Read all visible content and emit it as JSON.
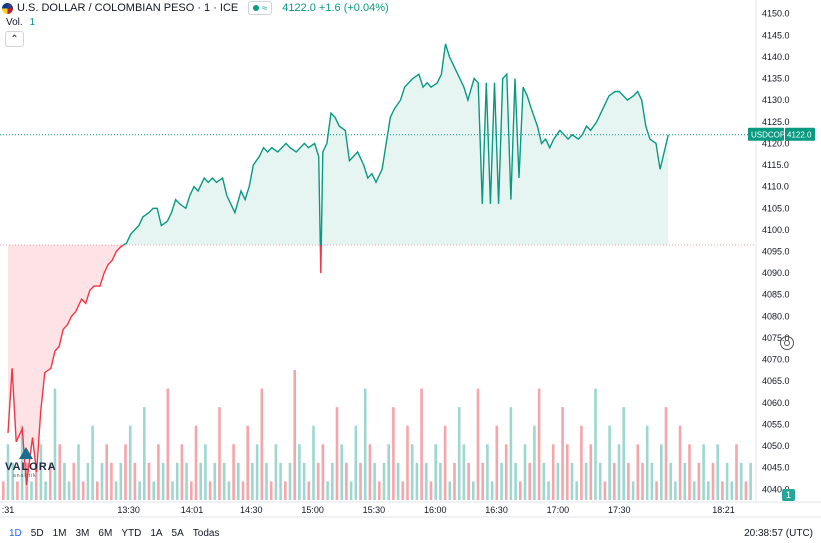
{
  "header": {
    "symbol": "U.S. DOLLAR / COLOMBIAN PESO · 1 · ICE",
    "approx_icon": "≈",
    "price_change": "4122.0 +1.6 (+0.04%)",
    "vol_label": "Vol.",
    "vol_value": "1"
  },
  "logo": {
    "name": "VALORA",
    "sub": "analitik"
  },
  "badge": {
    "symbol": "USDCOP",
    "price": "4122.0"
  },
  "volume_badge": "1",
  "range_buttons": [
    "1D",
    "5D",
    "1M",
    "3M",
    "6M",
    "YTD",
    "1A",
    "5A",
    "Todas"
  ],
  "active_range": "1D",
  "clock": "20:38:57 (UTC)",
  "colors": {
    "up": "#089981",
    "down": "#f23645",
    "vol_up": "#9ed7d0",
    "vol_down": "#f5a6ab",
    "accent": "#2962ff"
  },
  "chart_data": {
    "type": "area",
    "y_axis": {
      "range": [
        4038,
        4152
      ],
      "ticks": [
        4040,
        4045,
        4050,
        4055,
        4060,
        4065,
        4070,
        4075,
        4080,
        4085,
        4090,
        4095,
        4100,
        4105,
        4110,
        4115,
        4120,
        4125,
        4130,
        4135,
        4140,
        4145,
        4150
      ]
    },
    "x_axis": {
      "range": [
        "12:31",
        "18:33"
      ],
      "tick_labels": [
        {
          "label": ":31",
          "t": "12:31"
        },
        {
          "label": "13:30",
          "t": "13:30"
        },
        {
          "label": "14:01",
          "t": "14:01"
        },
        {
          "label": "14:30",
          "t": "14:30"
        },
        {
          "label": "15:00",
          "t": "15:00"
        },
        {
          "label": "15:30",
          "t": "15:30"
        },
        {
          "label": "16:00",
          "t": "16:00"
        },
        {
          "label": "16:30",
          "t": "16:30"
        },
        {
          "label": "17:00",
          "t": "17:00"
        },
        {
          "label": "17:30",
          "t": "17:30"
        },
        {
          "label": "18:21",
          "t": "18:21"
        }
      ]
    },
    "baseline": 4096.5,
    "last_price": 4122.0,
    "series": [
      {
        "points": [
          [
            "12:31",
            4053
          ],
          [
            "12:33",
            4068
          ],
          [
            "12:35",
            4051
          ],
          [
            "12:38",
            4054
          ],
          [
            "12:40",
            4041
          ],
          [
            "12:43",
            4052
          ],
          [
            "12:45",
            4044
          ],
          [
            "12:47",
            4058
          ],
          [
            "12:49",
            4067
          ],
          [
            "12:52",
            4068
          ],
          [
            "12:54",
            4072
          ],
          [
            "12:56",
            4073
          ],
          [
            "12:58",
            4077
          ],
          [
            "13:00",
            4078
          ],
          [
            "13:02",
            4080
          ],
          [
            "13:04",
            4081
          ],
          [
            "13:07",
            4084
          ],
          [
            "13:09",
            4083
          ],
          [
            "13:11",
            4086
          ],
          [
            "13:13",
            4087
          ],
          [
            "13:16",
            4087
          ],
          [
            "13:18",
            4090
          ],
          [
            "13:20",
            4092
          ],
          [
            "13:22",
            4093
          ],
          [
            "13:24",
            4095
          ],
          [
            "13:26",
            4096
          ],
          [
            "13:29",
            4097
          ],
          [
            "13:31",
            4099
          ],
          [
            "13:33",
            4100
          ],
          [
            "13:35",
            4101
          ],
          [
            "13:37",
            4103
          ],
          [
            "13:40",
            4104
          ],
          [
            "13:42",
            4105
          ],
          [
            "13:44",
            4105
          ],
          [
            "13:46",
            4101
          ],
          [
            "13:49",
            4102
          ],
          [
            "13:51",
            4104
          ],
          [
            "13:53",
            4107
          ],
          [
            "13:55",
            4106
          ],
          [
            "13:58",
            4105
          ],
          [
            "14:00",
            4108
          ],
          [
            "14:02",
            4110
          ],
          [
            "14:04",
            4109
          ],
          [
            "14:07",
            4112
          ],
          [
            "14:09",
            4111
          ],
          [
            "14:11",
            4112
          ],
          [
            "14:13",
            4111
          ],
          [
            "14:16",
            4112
          ],
          [
            "14:18",
            4108
          ],
          [
            "14:20",
            4106
          ],
          [
            "14:22",
            4104
          ],
          [
            "14:25",
            4109
          ],
          [
            "14:27",
            4107
          ],
          [
            "14:29",
            4110
          ],
          [
            "14:31",
            4115
          ],
          [
            "14:34",
            4117
          ],
          [
            "14:36",
            4119
          ],
          [
            "14:38",
            4118
          ],
          [
            "14:40",
            4119
          ],
          [
            "14:43",
            4118
          ],
          [
            "14:45",
            4119
          ],
          [
            "14:47",
            4120
          ],
          [
            "14:49",
            4119
          ],
          [
            "14:52",
            4118
          ],
          [
            "14:54",
            4119
          ],
          [
            "14:56",
            4120
          ],
          [
            "14:58",
            4119
          ],
          [
            "15:01",
            4120
          ],
          [
            "15:03",
            4117
          ],
          [
            "15:04",
            4090
          ],
          [
            "15:05",
            4118
          ],
          [
            "15:07",
            4120
          ],
          [
            "15:09",
            4127
          ],
          [
            "15:11",
            4126
          ],
          [
            "15:13",
            4124
          ],
          [
            "15:16",
            4123
          ],
          [
            "15:18",
            4116
          ],
          [
            "15:20",
            4117
          ],
          [
            "15:22",
            4118
          ],
          [
            "15:25",
            4115
          ],
          [
            "15:27",
            4112
          ],
          [
            "15:29",
            4113
          ],
          [
            "15:31",
            4111
          ],
          [
            "15:34",
            4114
          ],
          [
            "15:36",
            4120
          ],
          [
            "15:38",
            4126
          ],
          [
            "15:40",
            4128
          ],
          [
            "15:43",
            4130
          ],
          [
            "15:45",
            4133
          ],
          [
            "15:47",
            4134
          ],
          [
            "15:49",
            4135
          ],
          [
            "15:52",
            4136
          ],
          [
            "15:54",
            4133
          ],
          [
            "15:56",
            4134
          ],
          [
            "15:58",
            4133
          ],
          [
            "16:01",
            4134
          ],
          [
            "16:03",
            4136
          ],
          [
            "16:05",
            4143
          ],
          [
            "16:07",
            4140
          ],
          [
            "16:10",
            4137
          ],
          [
            "16:12",
            4135
          ],
          [
            "16:14",
            4133
          ],
          [
            "16:16",
            4130
          ],
          [
            "16:19",
            4135
          ],
          [
            "16:21",
            4134
          ],
          [
            "16:23",
            4106
          ],
          [
            "16:25",
            4134
          ],
          [
            "16:27",
            4106
          ],
          [
            "16:29",
            4134
          ],
          [
            "16:31",
            4106
          ],
          [
            "16:33",
            4135
          ],
          [
            "16:35",
            4136
          ],
          [
            "16:37",
            4107
          ],
          [
            "16:39",
            4135
          ],
          [
            "16:41",
            4112
          ],
          [
            "16:43",
            4133
          ],
          [
            "16:45",
            4131
          ],
          [
            "16:47",
            4128
          ],
          [
            "16:50",
            4124
          ],
          [
            "16:52",
            4120
          ],
          [
            "16:54",
            4121
          ],
          [
            "16:56",
            4119
          ],
          [
            "16:58",
            4121
          ],
          [
            "17:01",
            4123
          ],
          [
            "17:03",
            4122
          ],
          [
            "17:05",
            4121
          ],
          [
            "17:07",
            4122
          ],
          [
            "17:10",
            4121
          ],
          [
            "17:12",
            4122
          ],
          [
            "17:14",
            4124
          ],
          [
            "17:16",
            4123
          ],
          [
            "17:19",
            4125
          ],
          [
            "17:21",
            4127
          ],
          [
            "17:23",
            4129
          ],
          [
            "17:25",
            4131
          ],
          [
            "17:28",
            4132
          ],
          [
            "17:30",
            4132
          ],
          [
            "17:32",
            4131
          ],
          [
            "17:34",
            4130
          ],
          [
            "17:37",
            4131
          ],
          [
            "17:39",
            4132
          ],
          [
            "17:41",
            4130
          ],
          [
            "17:43",
            4124
          ],
          [
            "17:45",
            4121
          ],
          [
            "17:48",
            4120
          ],
          [
            "17:50",
            4114
          ],
          [
            "17:52",
            4118
          ],
          [
            "17:54",
            4122
          ]
        ]
      }
    ],
    "volume": [
      1,
      3,
      2,
      1,
      4,
      2,
      1,
      2,
      3,
      1,
      2,
      6,
      3,
      2,
      1,
      2,
      3,
      1,
      2,
      4,
      1,
      2,
      3,
      2,
      1,
      2,
      3,
      4,
      2,
      1,
      5,
      2,
      1,
      3,
      2,
      6,
      1,
      2,
      3,
      2,
      1,
      4,
      2,
      3,
      1,
      2,
      5,
      2,
      1,
      3,
      2,
      1,
      4,
      2,
      3,
      6,
      2,
      1,
      3,
      2,
      1,
      2,
      7,
      3,
      2,
      1,
      4,
      2,
      3,
      1,
      2,
      5,
      3,
      2,
      1,
      4,
      2,
      6,
      3,
      2,
      1,
      2,
      3,
      5,
      2,
      1,
      4,
      3,
      2,
      6,
      2,
      1,
      3,
      2,
      4,
      1,
      2,
      5,
      3,
      2,
      1,
      6,
      2,
      3,
      1,
      4,
      2,
      3,
      5,
      2,
      1,
      3,
      2,
      4,
      6,
      2,
      1,
      3,
      2,
      5,
      3,
      2,
      1,
      4,
      2,
      3,
      6,
      2,
      1,
      4,
      2,
      3,
      5,
      2,
      1,
      3,
      2,
      4,
      2,
      1,
      3,
      5,
      2,
      1,
      4,
      2,
      3,
      1,
      2,
      3,
      1,
      2,
      3,
      1,
      2,
      1,
      3,
      2,
      1,
      2
    ],
    "volume_up_pattern": [
      0,
      1,
      1,
      0,
      1,
      0,
      1,
      0,
      1,
      1,
      0,
      1,
      0,
      1,
      1,
      0,
      1,
      0,
      1,
      1,
      0,
      1,
      0,
      0,
      1,
      1,
      0,
      1,
      0,
      1,
      1,
      0,
      1,
      0,
      1,
      0,
      1,
      1,
      0,
      1,
      0,
      0,
      1,
      1,
      0,
      1,
      0,
      1,
      1,
      0,
      1,
      0,
      0,
      1,
      1,
      0,
      1,
      0,
      1,
      1,
      0,
      1,
      0,
      1,
      1,
      0,
      1,
      0,
      0,
      1,
      1,
      0,
      1,
      0,
      1,
      1,
      0,
      1,
      0,
      1,
      0,
      1,
      1,
      0,
      1,
      0,
      0,
      1,
      1,
      0,
      1,
      0,
      1,
      1,
      0,
      1,
      0,
      1,
      1,
      0,
      1,
      0,
      0,
      1,
      1,
      0,
      1,
      0,
      1,
      1,
      0,
      1,
      0,
      1,
      0,
      1,
      1,
      0,
      1,
      0,
      0,
      1,
      1,
      0,
      1,
      0,
      1,
      1,
      0,
      1,
      0,
      1,
      1,
      0,
      1,
      0,
      0,
      1,
      1,
      0,
      1,
      0,
      1,
      1,
      0,
      1,
      0,
      1,
      0,
      1,
      1,
      0,
      1,
      0,
      1,
      1,
      0,
      1,
      0,
      1
    ]
  }
}
